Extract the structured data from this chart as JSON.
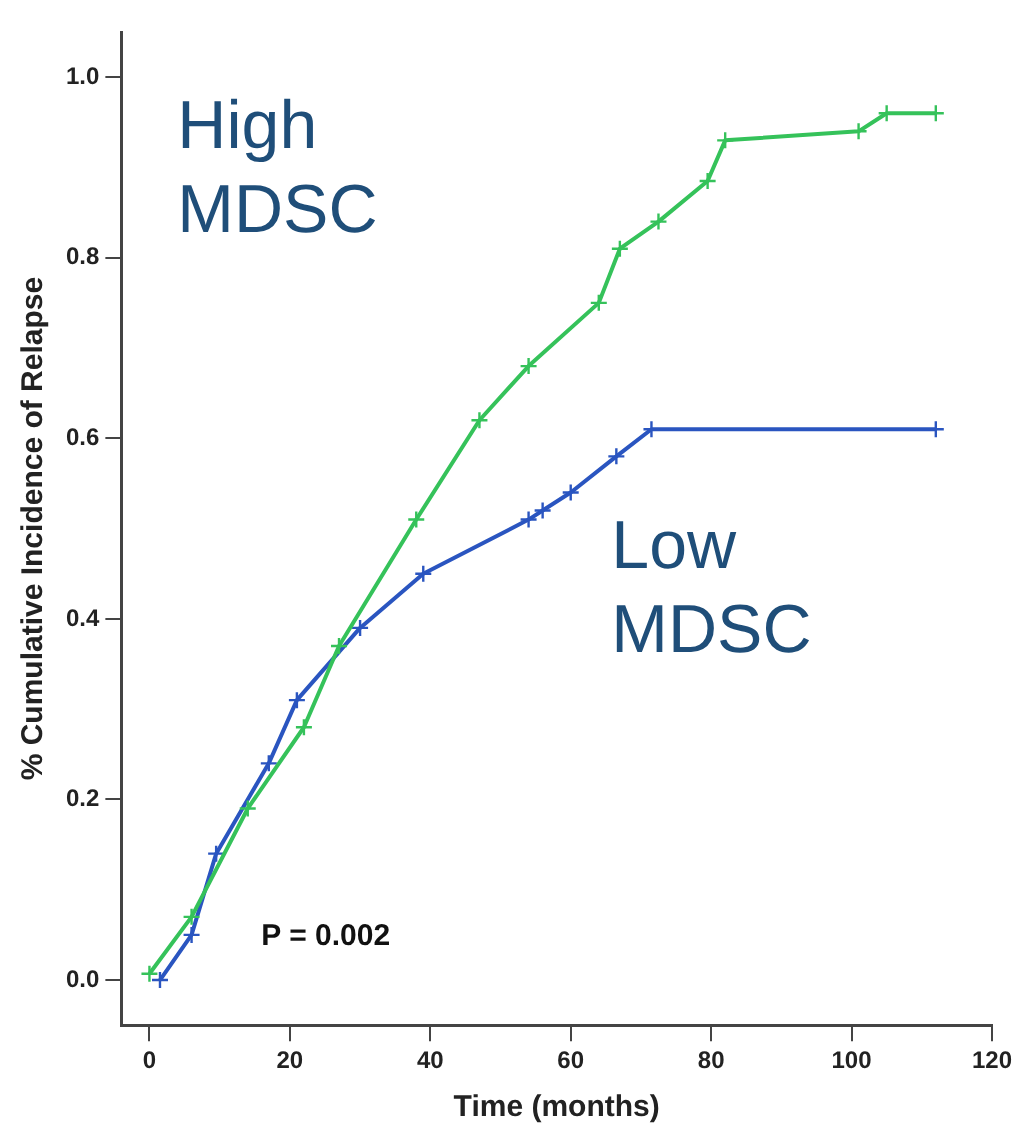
{
  "chart_data": {
    "type": "line",
    "xlabel": "Time (months)",
    "ylabel": "% Cumulative Incidence of Relapse",
    "xlim": [
      -4,
      120
    ],
    "xticks": [
      0,
      20,
      40,
      60,
      80,
      100,
      120
    ],
    "ylim": [
      -0.05,
      1.05
    ],
    "yticks": [
      {
        "value": 0,
        "label": "0.0"
      },
      {
        "value": 0.2,
        "label": "0.2"
      },
      {
        "value": 0.4,
        "label": "0.4"
      },
      {
        "value": 0.6,
        "label": "0.6"
      },
      {
        "value": 0.8,
        "label": "0.8"
      },
      {
        "value": 1,
        "label": "1.0"
      }
    ],
    "grid": false,
    "legend": false,
    "marker": "cross",
    "line_style": "solid",
    "annotations": [
      "P = 0.002"
    ],
    "series": [
      {
        "name": "High MDSC",
        "color": "#35c25a",
        "x": [
          0,
          6,
          14,
          22,
          27,
          38,
          47,
          54,
          64,
          67,
          72.5,
          79.5,
          82,
          101,
          105,
          112
        ],
        "values": [
          0.007,
          0.07,
          0.19,
          0.28,
          0.37,
          0.51,
          0.62,
          0.68,
          0.75,
          0.81,
          0.84,
          0.885,
          0.93,
          0.94,
          0.96,
          0.96
        ]
      },
      {
        "name": "Low MDSC",
        "color": "#2a55c0",
        "x": [
          1.5,
          6,
          9.5,
          17,
          21,
          30,
          39,
          54,
          56,
          60,
          66.5,
          71.5,
          112
        ],
        "values": [
          0,
          0.05,
          0.14,
          0.24,
          0.31,
          0.39,
          0.45,
          0.51,
          0.52,
          0.54,
          0.58,
          0.61,
          0.61
        ]
      }
    ]
  }
}
